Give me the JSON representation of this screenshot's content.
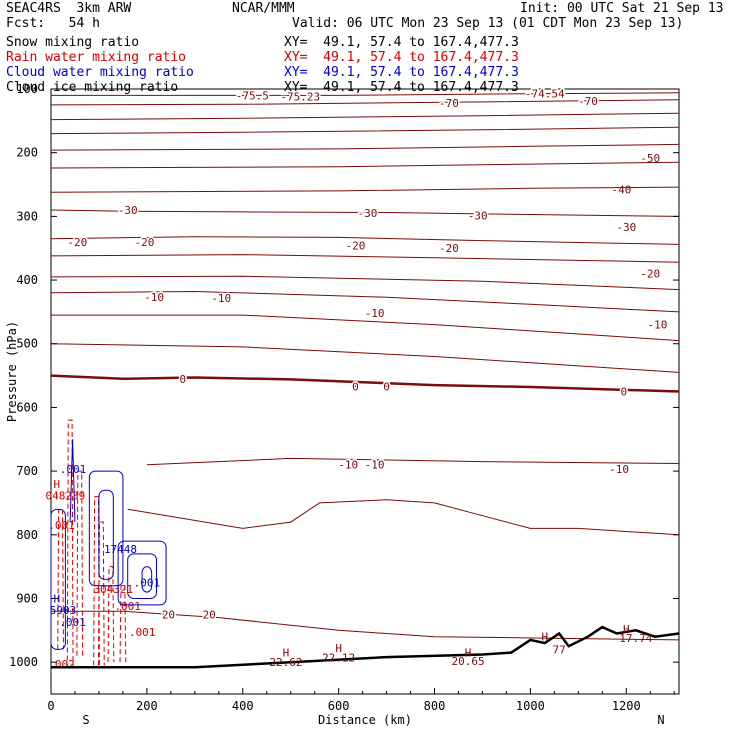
{
  "header": {
    "model": "SEAC4RS  3km ARW",
    "org": "NCAR/MMM",
    "init": "Init: 00 UTC Sat 21 Sep 13",
    "fcst": "Fcst:   54 h",
    "valid": "Valid: 06 UTC Mon 23 Sep 13 (01 CDT Mon 23 Sep 13)"
  },
  "fields": [
    {
      "label": "Snow mixing ratio",
      "xy": "XY=  49.1, 57.4 to 167.4,477.3",
      "color": "#000000"
    },
    {
      "label": "Rain water mixing ratio",
      "xy": "XY=  49.1, 57.4 to 167.4,477.3",
      "color": "#d40000"
    },
    {
      "label": "Cloud water mixing ratio",
      "xy": "XY=  49.1, 57.4 to 167.4,477.3",
      "color": "#0000cc"
    },
    {
      "label": "Cloud ice mixing ratio",
      "xy": "XY=  49.1, 57.4 to 167.4,477.3",
      "color": "#000000"
    }
  ],
  "chart_data": {
    "type": "contour",
    "xlabel": "Distance (km)",
    "ylabel": "Pressure (hPa)",
    "xlim": [
      0,
      1310
    ],
    "ylim": [
      1050,
      100
    ],
    "x_ticks": [
      0,
      200,
      400,
      600,
      800,
      1000,
      1200
    ],
    "y_ticks": [
      100,
      200,
      300,
      400,
      500,
      600,
      700,
      800,
      900,
      1000
    ],
    "end_labels": {
      "left": "S",
      "right": "N"
    },
    "temperature_color": "#7a0c0c",
    "isotherms": [
      {
        "p": [
          [
            0,
            110
          ],
          [
            300,
            110
          ],
          [
            600,
            110
          ],
          [
            900,
            108
          ],
          [
            1310,
            106
          ]
        ],
        "labels": [
          {
            "x": 420,
            "p": 110,
            "t": "-75.5"
          },
          {
            "x": 520,
            "p": 112,
            "t": "-75.23"
          },
          {
            "x": 1030,
            "p": 107,
            "t": "-74.54"
          }
        ]
      },
      {
        "p": [
          [
            0,
            125
          ],
          [
            400,
            124
          ],
          [
            800,
            121
          ],
          [
            1310,
            117
          ]
        ],
        "labels": [
          {
            "x": 830,
            "p": 122,
            "t": "-70"
          },
          {
            "x": 1120,
            "p": 119,
            "t": "-70"
          }
        ]
      },
      {
        "p": [
          [
            0,
            148
          ],
          [
            400,
            146
          ],
          [
            900,
            142
          ],
          [
            1310,
            138
          ]
        ],
        "labels": []
      },
      {
        "p": [
          [
            0,
            170
          ],
          [
            400,
            168
          ],
          [
            900,
            164
          ],
          [
            1310,
            160
          ]
        ],
        "labels": []
      },
      {
        "p": [
          [
            0,
            196
          ],
          [
            600,
            194
          ],
          [
            1000,
            190
          ],
          [
            1310,
            187
          ]
        ],
        "labels": [
          {
            "x": 1250,
            "p": 208,
            "t": "-50"
          }
        ]
      },
      {
        "p": [
          [
            0,
            224
          ],
          [
            600,
            222
          ],
          [
            1000,
            218
          ],
          [
            1310,
            215
          ]
        ],
        "labels": [
          {
            "x": 1190,
            "p": 258,
            "t": "-40"
          }
        ]
      },
      {
        "p": [
          [
            0,
            262
          ],
          [
            600,
            260
          ],
          [
            1000,
            256
          ],
          [
            1310,
            254
          ]
        ],
        "labels": []
      },
      {
        "p": [
          [
            0,
            290
          ],
          [
            160,
            292
          ],
          [
            400,
            293
          ],
          [
            700,
            294
          ],
          [
            1000,
            297
          ],
          [
            1310,
            300
          ]
        ],
        "labels": [
          {
            "x": 160,
            "p": 290,
            "t": "-30"
          },
          {
            "x": 660,
            "p": 295,
            "t": "-30"
          },
          {
            "x": 890,
            "p": 299,
            "t": "-30"
          },
          {
            "x": 1200,
            "p": 317,
            "t": "-30"
          }
        ]
      },
      {
        "p": [
          [
            0,
            335
          ],
          [
            300,
            332
          ],
          [
            600,
            333
          ],
          [
            900,
            338
          ],
          [
            1310,
            344
          ]
        ],
        "labels": [
          {
            "x": 55,
            "p": 340,
            "t": "-20"
          },
          {
            "x": 195,
            "p": 340,
            "t": "-20"
          },
          {
            "x": 635,
            "p": 346,
            "t": "-20"
          },
          {
            "x": 830,
            "p": 350,
            "t": "-20"
          },
          {
            "x": 1250,
            "p": 390,
            "t": "-20"
          }
        ]
      },
      {
        "p": [
          [
            0,
            362
          ],
          [
            400,
            360
          ],
          [
            800,
            365
          ],
          [
            1310,
            372
          ]
        ],
        "labels": []
      },
      {
        "p": [
          [
            0,
            395
          ],
          [
            400,
            394
          ],
          [
            900,
            402
          ],
          [
            1310,
            415
          ]
        ],
        "labels": []
      },
      {
        "p": [
          [
            0,
            420
          ],
          [
            300,
            418
          ],
          [
            700,
            427
          ],
          [
            1000,
            438
          ],
          [
            1310,
            450
          ]
        ],
        "labels": [
          {
            "x": 215,
            "p": 427,
            "t": "-10"
          },
          {
            "x": 355,
            "p": 428,
            "t": "-10"
          },
          {
            "x": 675,
            "p": 452,
            "t": "-10"
          },
          {
            "x": 1265,
            "p": 470,
            "t": "-10"
          }
        ]
      },
      {
        "p": [
          [
            0,
            455
          ],
          [
            400,
            455
          ],
          [
            800,
            470
          ],
          [
            1310,
            495
          ]
        ],
        "labels": []
      },
      {
        "p": [
          [
            0,
            500
          ],
          [
            400,
            505
          ],
          [
            800,
            520
          ],
          [
            1310,
            545
          ]
        ],
        "labels": []
      },
      {
        "p": [
          [
            0,
            550
          ],
          [
            150,
            555
          ],
          [
            300,
            553
          ],
          [
            500,
            556
          ],
          [
            800,
            565
          ],
          [
            1000,
            568
          ],
          [
            1310,
            575
          ]
        ],
        "labels": [
          {
            "x": 275,
            "p": 555,
            "t": "0"
          },
          {
            "x": 635,
            "p": 567,
            "t": "0"
          },
          {
            "x": 700,
            "p": 567,
            "t": "0"
          },
          {
            "x": 1195,
            "p": 575,
            "t": "0"
          }
        ],
        "bold": true
      },
      {
        "p": [
          [
            200,
            690
          ],
          [
            500,
            680
          ],
          [
            900,
            685
          ],
          [
            1310,
            688
          ]
        ],
        "labels": [
          {
            "x": 620,
            "p": 690,
            "t": "-10"
          },
          {
            "x": 675,
            "p": 690,
            "t": "-10"
          },
          {
            "x": 1185,
            "p": 697,
            "t": "-10"
          }
        ],
        "positive_label_fix": true
      },
      {
        "p": [
          [
            160,
            760
          ],
          [
            400,
            790
          ],
          [
            500,
            780
          ],
          [
            560,
            750
          ],
          [
            700,
            745
          ],
          [
            800,
            750
          ],
          [
            900,
            770
          ],
          [
            1000,
            790
          ],
          [
            1100,
            790
          ],
          [
            1310,
            800
          ]
        ],
        "labels": []
      },
      {
        "p": [
          [
            0,
            920
          ],
          [
            150,
            920
          ],
          [
            350,
            930
          ],
          [
            600,
            950
          ],
          [
            800,
            960
          ],
          [
            1310,
            965
          ]
        ],
        "labels": [
          {
            "x": 245,
            "p": 925,
            "t": "20"
          },
          {
            "x": 330,
            "p": 925,
            "t": "20"
          }
        ]
      }
    ],
    "surface": [
      [
        0,
        1008
      ],
      [
        300,
        1008
      ],
      [
        500,
        1000
      ],
      [
        700,
        992
      ],
      [
        900,
        988
      ],
      [
        960,
        985
      ],
      [
        1000,
        965
      ],
      [
        1030,
        970
      ],
      [
        1060,
        955
      ],
      [
        1080,
        975
      ],
      [
        1120,
        960
      ],
      [
        1150,
        945
      ],
      [
        1180,
        955
      ],
      [
        1220,
        950
      ],
      [
        1260,
        960
      ],
      [
        1310,
        955
      ]
    ],
    "surface_labels": [
      {
        "x": 490,
        "p": 985,
        "t": "H"
      },
      {
        "x": 490,
        "p": 1000,
        "t": "22.62"
      },
      {
        "x": 600,
        "p": 978,
        "t": "H"
      },
      {
        "x": 600,
        "p": 993,
        "t": "22.12"
      },
      {
        "x": 870,
        "p": 985,
        "t": "H"
      },
      {
        "x": 870,
        "p": 998,
        "t": "20.65"
      },
      {
        "x": 1030,
        "p": 960,
        "t": "H"
      },
      {
        "x": 1060,
        "p": 980,
        "t": "77"
      },
      {
        "x": 1200,
        "p": 948,
        "t": "H"
      },
      {
        "x": 1220,
        "p": 962,
        "t": "17.74"
      }
    ],
    "rain_color": "#d40000",
    "cloud_color": "#0000cc",
    "rain_labels": [
      {
        "x": 12,
        "p": 720,
        "t": "H"
      },
      {
        "x": 30,
        "p": 738,
        "t": "048239"
      },
      {
        "x": 22,
        "p": 785,
        "t": ".001"
      },
      {
        "x": 130,
        "p": 885,
        "t": "304321"
      },
      {
        "x": 160,
        "p": 912,
        "t": ".001"
      },
      {
        "x": 190,
        "p": 953,
        "t": ".001"
      },
      {
        "x": 22,
        "p": 1003,
        "t": ".002"
      }
    ],
    "cloud_labels": [
      {
        "x": 46,
        "p": 697,
        "t": ".001"
      },
      {
        "x": 145,
        "p": 822,
        "t": "17448"
      },
      {
        "x": 200,
        "p": 875,
        "t": ".001"
      },
      {
        "x": 12,
        "p": 900,
        "t": "H"
      },
      {
        "x": 25,
        "p": 918,
        "t": "5903"
      },
      {
        "x": 45,
        "p": 937,
        "t": ".001"
      }
    ]
  }
}
